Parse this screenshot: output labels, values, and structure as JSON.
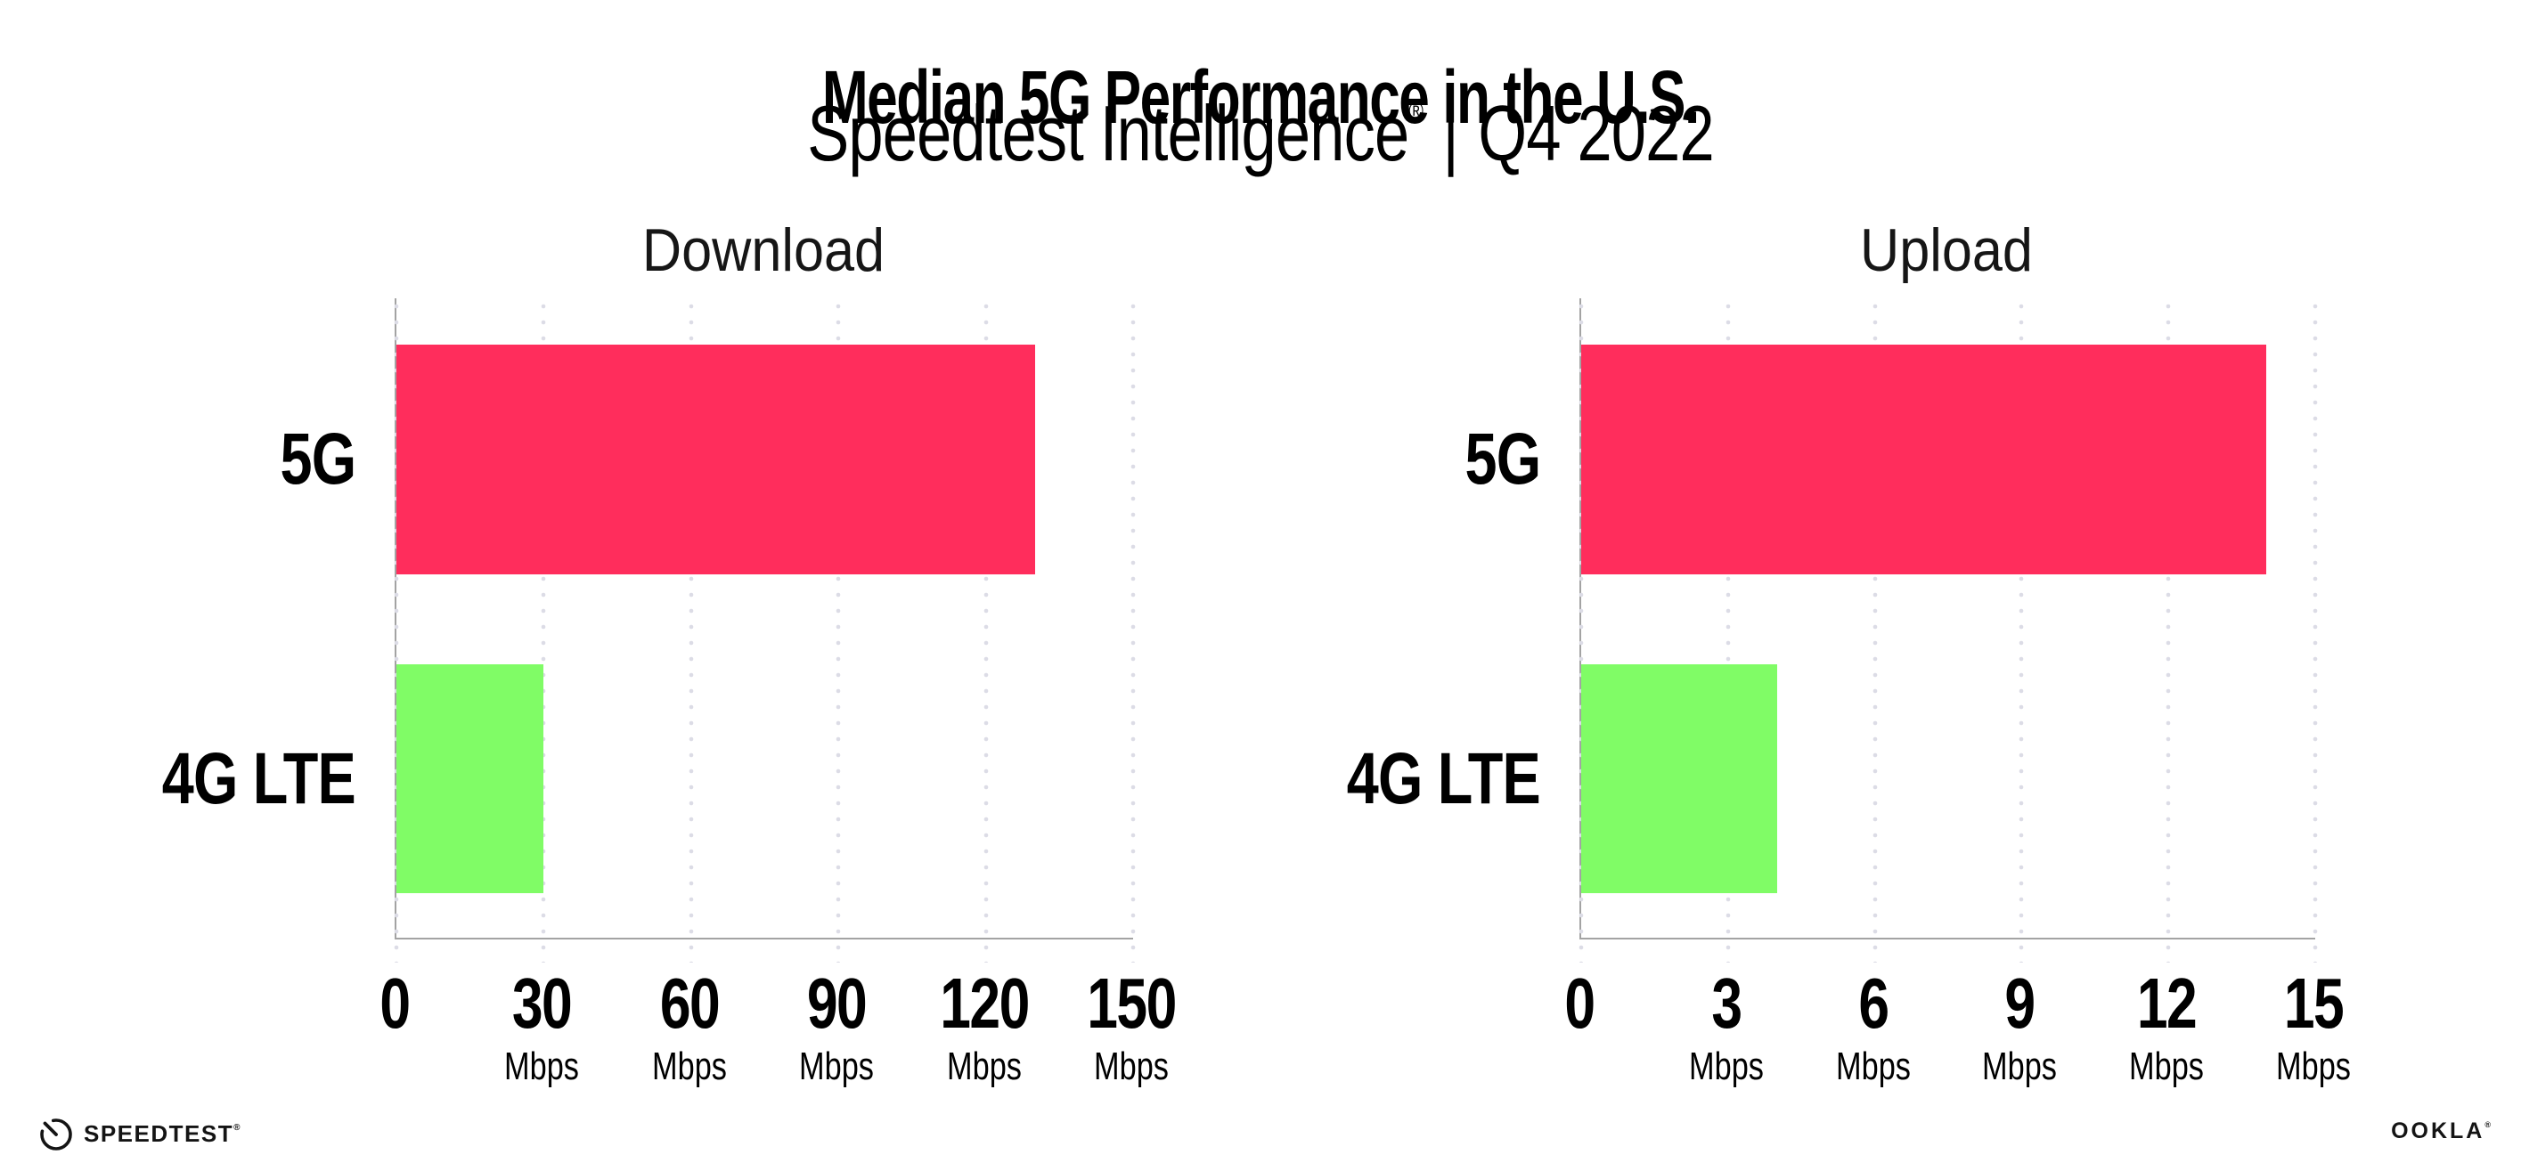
{
  "header": {
    "title": "Median 5G Performance in the U.S.",
    "subtitle_main": "Speedtest Intelligence",
    "subtitle_reg": "®",
    "subtitle_divider": "|",
    "subtitle_period": "Q4 2022"
  },
  "chart_data": [
    {
      "type": "bar",
      "orientation": "horizontal",
      "title": "Download",
      "categories": [
        "5G",
        "4G LTE"
      ],
      "values": [
        130,
        30
      ],
      "unit": "Mbps",
      "xlim": [
        0,
        150
      ],
      "xticks": [
        0,
        30,
        60,
        90,
        120,
        150
      ],
      "bar_colors": [
        "#FF2D5C",
        "#80FC66"
      ],
      "grid": "dotted-vertical",
      "gridline_color": "#DCDCE6",
      "axis_color": "#A3A3A3",
      "legend": "none"
    },
    {
      "type": "bar",
      "orientation": "horizontal",
      "title": "Upload",
      "categories": [
        "5G",
        "4G LTE"
      ],
      "values": [
        14,
        4
      ],
      "unit": "Mbps",
      "xlim": [
        0,
        15
      ],
      "xticks": [
        0,
        3,
        6,
        9,
        12,
        15
      ],
      "bar_colors": [
        "#FF2D5C",
        "#80FC66"
      ],
      "grid": "dotted-vertical",
      "gridline_color": "#DCDCE6",
      "axis_color": "#A3A3A3",
      "legend": "none"
    }
  ],
  "footer": {
    "speedtest_logo_text": "SPEEDTEST",
    "speedtest_reg": "®",
    "ookla_logo_text": "OOKLA",
    "ookla_reg": "®"
  }
}
